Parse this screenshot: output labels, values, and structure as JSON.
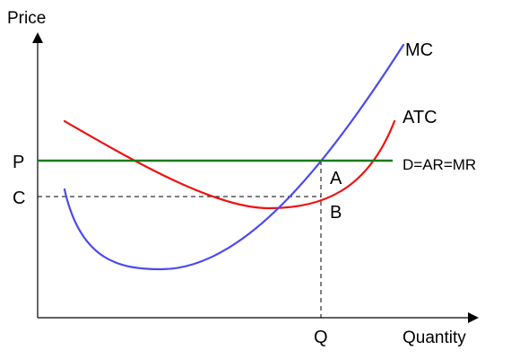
{
  "axes": {
    "y_title": "Price",
    "x_title": "Quantity"
  },
  "y_labels": {
    "p": "P",
    "c": "C"
  },
  "x_labels": {
    "q": "Q"
  },
  "curve_labels": {
    "mc": "MC",
    "atc": "ATC",
    "demand": "D=AR=MR"
  },
  "point_labels": {
    "a": "A",
    "b": "B"
  },
  "colors": {
    "mc": "#4a4af0",
    "atc": "#ee1111",
    "demand": "#1a7a1a",
    "axis": "#000000",
    "guide": "#000000"
  }
}
